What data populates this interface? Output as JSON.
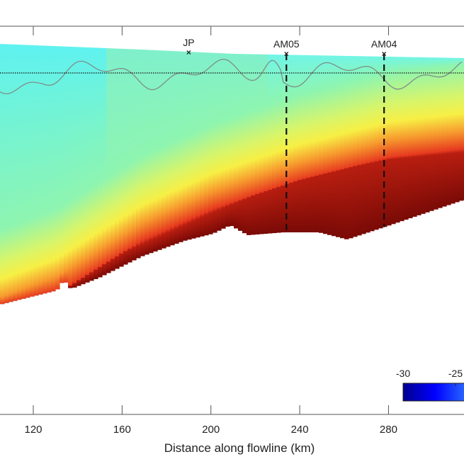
{
  "chart_data": {
    "type": "heatmap",
    "xlabel": "Distance along flowline (km)",
    "xlim": [
      105,
      314
    ],
    "x_ticks": [
      120,
      160,
      200,
      240,
      280
    ],
    "x_tick_labels": [
      "120",
      "160",
      "200",
      "240",
      "280"
    ],
    "markers": [
      {
        "label": "JP",
        "x_km": 190,
        "dashed_line": false
      },
      {
        "label": "AM05",
        "x_km": 234,
        "dashed_line": true
      },
      {
        "label": "AM04",
        "x_km": 278,
        "dashed_line": true
      }
    ],
    "colormap": "jet",
    "colorbar": {
      "tick_labels": [
        "-30",
        "-25"
      ],
      "colors": [
        "#00008f",
        "#0000ff",
        "#2a6bff"
      ]
    },
    "colors": {
      "cold_surface": "#6ff0e8",
      "mid": "#f5f55a",
      "warm_bed": "#7a0a06"
    }
  }
}
